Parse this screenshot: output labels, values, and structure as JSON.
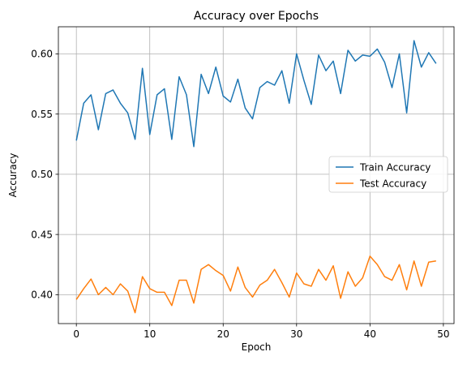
{
  "chart_data": {
    "type": "line",
    "title": "Accuracy over Epochs",
    "xlabel": "Epoch",
    "ylabel": "Accuracy",
    "xlim": [
      -2.45,
      51.45
    ],
    "ylim": [
      0.376,
      0.6225
    ],
    "xticks": [
      0,
      10,
      20,
      30,
      40,
      50
    ],
    "yticks": [
      0.4,
      0.45,
      0.5,
      0.55,
      0.6
    ],
    "ytick_labels": [
      "0.40",
      "0.45",
      "0.50",
      "0.55",
      "0.60"
    ],
    "grid": true,
    "legend_position": "center-right",
    "x": [
      0,
      1,
      2,
      3,
      4,
      5,
      6,
      7,
      8,
      9,
      10,
      11,
      12,
      13,
      14,
      15,
      16,
      17,
      18,
      19,
      20,
      21,
      22,
      23,
      24,
      25,
      26,
      27,
      28,
      29,
      30,
      31,
      32,
      33,
      34,
      35,
      36,
      37,
      38,
      39,
      40,
      41,
      42,
      43,
      44,
      45,
      46,
      47,
      48,
      49
    ],
    "series": [
      {
        "name": "Train Accuracy",
        "color": "#1f77b4",
        "values": [
          0.528,
          0.559,
          0.566,
          0.537,
          0.567,
          0.57,
          0.559,
          0.551,
          0.529,
          0.588,
          0.533,
          0.566,
          0.571,
          0.529,
          0.581,
          0.566,
          0.523,
          0.583,
          0.567,
          0.589,
          0.565,
          0.56,
          0.579,
          0.555,
          0.546,
          0.572,
          0.577,
          0.574,
          0.586,
          0.559,
          0.6,
          0.578,
          0.558,
          0.599,
          0.586,
          0.594,
          0.567,
          0.603,
          0.594,
          0.599,
          0.598,
          0.604,
          0.593,
          0.572,
          0.6,
          0.551,
          0.611,
          0.589,
          0.601,
          0.592
        ]
      },
      {
        "name": "Test Accuracy",
        "color": "#ff7f0e",
        "values": [
          0.396,
          0.405,
          0.413,
          0.4,
          0.406,
          0.4,
          0.409,
          0.403,
          0.385,
          0.415,
          0.405,
          0.402,
          0.402,
          0.391,
          0.412,
          0.412,
          0.393,
          0.421,
          0.425,
          0.42,
          0.416,
          0.403,
          0.423,
          0.406,
          0.398,
          0.408,
          0.412,
          0.421,
          0.41,
          0.398,
          0.418,
          0.409,
          0.407,
          0.421,
          0.412,
          0.424,
          0.397,
          0.419,
          0.407,
          0.414,
          0.432,
          0.425,
          0.415,
          0.412,
          0.425,
          0.404,
          0.428,
          0.407,
          0.427,
          0.428
        ]
      }
    ]
  }
}
